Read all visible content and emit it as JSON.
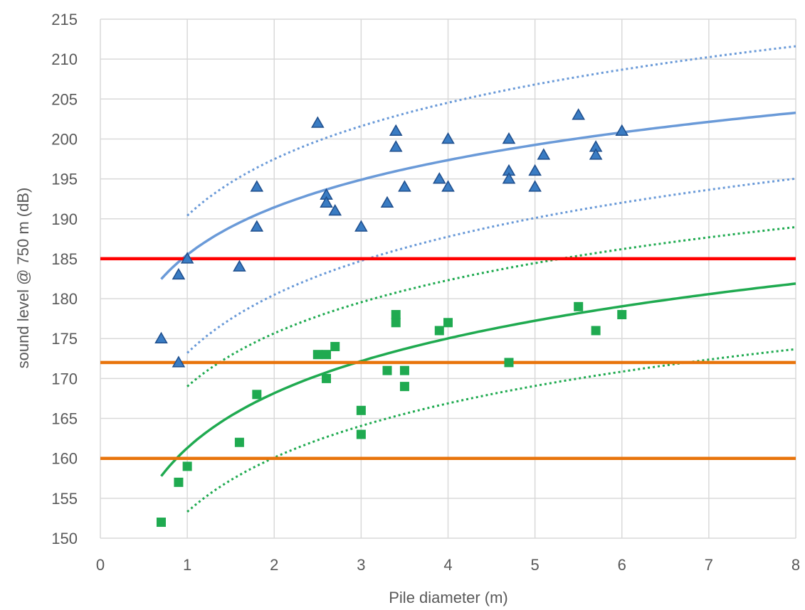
{
  "chart_data": {
    "type": "scatter",
    "xlabel": "Pile diameter (m)",
    "ylabel": "sound level @ 750 m (dB)",
    "xlim": [
      0,
      8
    ],
    "ylim": [
      150,
      215
    ],
    "x_ticks": [
      "0",
      "1",
      "2",
      "3",
      "4",
      "5",
      "6",
      "7",
      "8"
    ],
    "y_ticks": [
      "150",
      "155",
      "160",
      "165",
      "170",
      "175",
      "180",
      "185",
      "190",
      "195",
      "200",
      "205",
      "210",
      "215"
    ],
    "grid": true,
    "legend": "none",
    "colors": {
      "triangles": "#3a7cc3",
      "triangle_edge": "#1f4e8c",
      "fit_blue": "#6a9ad8",
      "squares": "#1faa50",
      "fit_green": "#1faa50",
      "threshold_red": "#ff0000",
      "threshold_orange": "#e8740c",
      "grid": "#d9d9d9"
    },
    "series": [
      {
        "marker": "triangle",
        "points": [
          [
            0.7,
            175
          ],
          [
            0.9,
            183
          ],
          [
            0.9,
            172
          ],
          [
            1.0,
            185
          ],
          [
            1.6,
            184
          ],
          [
            1.8,
            194
          ],
          [
            1.8,
            189
          ],
          [
            2.5,
            202
          ],
          [
            2.6,
            193
          ],
          [
            2.6,
            192
          ],
          [
            2.7,
            191
          ],
          [
            3.0,
            189
          ],
          [
            3.3,
            192
          ],
          [
            3.4,
            201
          ],
          [
            3.4,
            199
          ],
          [
            3.5,
            194
          ],
          [
            3.9,
            195
          ],
          [
            4.0,
            200
          ],
          [
            4.0,
            194
          ],
          [
            4.7,
            200
          ],
          [
            4.7,
            196
          ],
          [
            4.7,
            195
          ],
          [
            5.0,
            196
          ],
          [
            5.0,
            194
          ],
          [
            5.1,
            198
          ],
          [
            5.5,
            203
          ],
          [
            5.7,
            199
          ],
          [
            5.7,
            198
          ],
          [
            6.0,
            201
          ]
        ]
      },
      {
        "marker": "square",
        "points": [
          [
            0.7,
            152
          ],
          [
            0.9,
            157
          ],
          [
            1.0,
            159
          ],
          [
            1.6,
            162
          ],
          [
            1.8,
            168
          ],
          [
            2.5,
            173
          ],
          [
            2.6,
            173
          ],
          [
            2.6,
            170
          ],
          [
            2.7,
            174
          ],
          [
            3.0,
            166
          ],
          [
            3.0,
            163
          ],
          [
            3.3,
            171
          ],
          [
            3.4,
            178
          ],
          [
            3.4,
            177
          ],
          [
            3.5,
            171
          ],
          [
            3.5,
            169
          ],
          [
            3.9,
            176
          ],
          [
            4.0,
            177
          ],
          [
            4.7,
            172
          ],
          [
            5.5,
            179
          ],
          [
            5.7,
            176
          ],
          [
            6.0,
            178
          ]
        ]
      }
    ],
    "fits": [
      {
        "kind": "log",
        "intercept": 185.5,
        "slope": 8.55,
        "x_range": [
          0.7,
          8
        ],
        "style": "solid",
        "color": "fit_blue"
      },
      {
        "kind": "log",
        "intercept": 190.4,
        "slope": 10.2,
        "x_range": [
          1.0,
          8
        ],
        "style": "dotted",
        "color": "fit_blue"
      },
      {
        "kind": "log",
        "intercept": 173.2,
        "slope": 10.5,
        "x_range": [
          1.0,
          8
        ],
        "style": "dotted",
        "color": "fit_blue"
      },
      {
        "kind": "log",
        "intercept": 161.3,
        "slope": 9.9,
        "x_range": [
          0.7,
          8
        ],
        "style": "solid",
        "color": "fit_green"
      },
      {
        "kind": "log",
        "intercept": 169.0,
        "slope": 9.6,
        "x_range": [
          1.0,
          8
        ],
        "style": "dotted",
        "color": "fit_green"
      },
      {
        "kind": "log",
        "intercept": 153.3,
        "slope": 9.8,
        "x_range": [
          1.0,
          8
        ],
        "style": "dotted",
        "color": "fit_green"
      }
    ],
    "thresholds": [
      {
        "y": 185,
        "color": "threshold_red"
      },
      {
        "y": 172,
        "color": "threshold_orange"
      },
      {
        "y": 160,
        "color": "threshold_orange"
      }
    ]
  }
}
